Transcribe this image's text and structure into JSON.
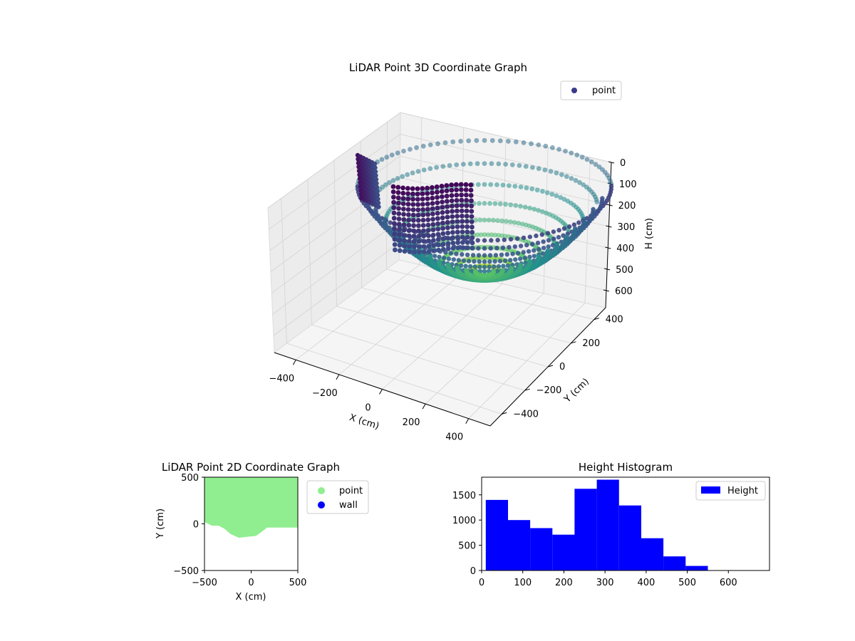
{
  "chart_data": [
    {
      "type": "scatter",
      "projection": "3d",
      "title": "LiDAR Point 3D Coordinate Graph",
      "xlabel": "X (cm)",
      "ylabel": "Y (cm)",
      "zlabel": "H (cm)",
      "xlim": [
        -500,
        500
      ],
      "ylim": [
        -500,
        500
      ],
      "zlim": [
        680,
        0
      ],
      "xticks": [
        "−400",
        "−200",
        "0",
        "200",
        "400"
      ],
      "yticks": [
        "−400",
        "−200",
        "0",
        "200",
        "400"
      ],
      "zticks": [
        "0",
        "100",
        "200",
        "300",
        "400",
        "500",
        "600"
      ],
      "grid": true,
      "colormap": "viridis",
      "legend": {
        "entries": [
          "point"
        ],
        "placement": "top-right"
      },
      "series": [
        {
          "name": "point",
          "color": "#3b3b8c",
          "description_points": {
            "outer_ring": {
              "radius_approx": 500,
              "height_range": [
                0,
                200
              ]
            },
            "bowl_bottom": {
              "height_approx": 480
            },
            "wall_block": {
              "x_range": [
                -300,
                0
              ],
              "height_range": [
                180,
                420
              ]
            }
          }
        }
      ]
    },
    {
      "type": "scatter",
      "title": "LiDAR Point 2D Coordinate Graph",
      "xlabel": "X (cm)",
      "ylabel": "Y (cm)",
      "xlim": [
        -500,
        500
      ],
      "ylim": [
        -500,
        500
      ],
      "xticks": [
        "−500",
        "0",
        "500"
      ],
      "yticks": [
        "−500",
        "0",
        "500"
      ],
      "legend": {
        "entries": [
          "point",
          "wall"
        ],
        "placement": "outside-right"
      },
      "series": [
        {
          "name": "point",
          "color": "#90ee90",
          "boundary": [
            [
              -500,
              500
            ],
            [
              500,
              500
            ],
            [
              500,
              -40
            ],
            [
              170,
              -40
            ],
            [
              120,
              -80
            ],
            [
              50,
              -130
            ],
            [
              -50,
              -140
            ],
            [
              -130,
              -150
            ],
            [
              -220,
              -110
            ],
            [
              -290,
              -50
            ],
            [
              -350,
              -20
            ],
            [
              -420,
              -20
            ],
            [
              -500,
              20
            ]
          ]
        },
        {
          "name": "wall",
          "color": "#0000ff",
          "points": []
        }
      ]
    },
    {
      "type": "bar",
      "subtype": "histogram",
      "title": "Height Histogram",
      "xlim": [
        0,
        700
      ],
      "ylim": [
        0,
        1850
      ],
      "xticks": [
        "0",
        "100",
        "200",
        "300",
        "400",
        "500",
        "600"
      ],
      "yticks": [
        "0",
        "500",
        "1000",
        "1500"
      ],
      "legend": {
        "entries": [
          "Height"
        ],
        "placement": "top-right"
      },
      "series": [
        {
          "name": "Height",
          "color": "#0000ff",
          "bin_edges": [
            10,
            64,
            118,
            172,
            226,
            280,
            334,
            388,
            442,
            496,
            550
          ],
          "values": [
            1400,
            1000,
            840,
            710,
            1620,
            1800,
            1290,
            640,
            280,
            90
          ]
        }
      ]
    }
  ]
}
